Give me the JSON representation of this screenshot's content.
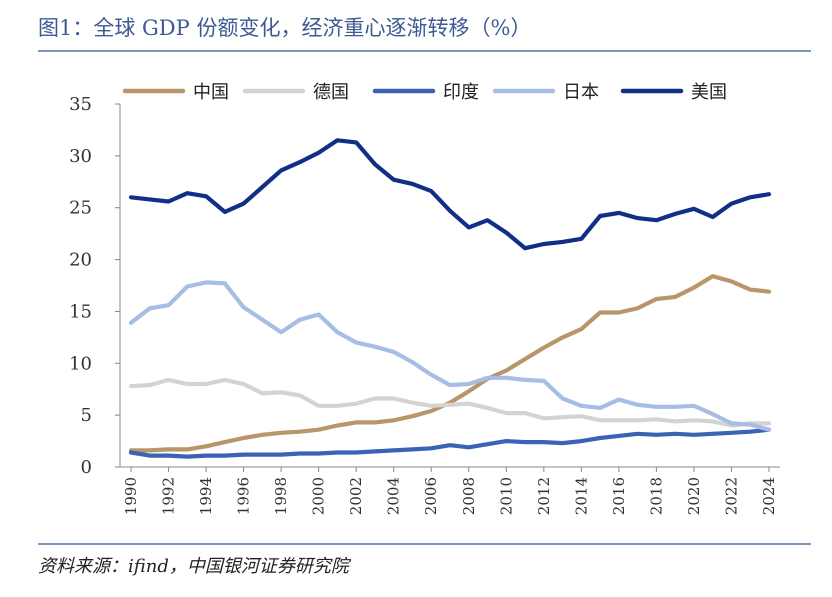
{
  "header": {
    "title": "图1：全球 GDP 份额变化，经济重心逐渐转移（%）"
  },
  "footer": {
    "source": "资料来源：ifind，中国银河证券研究院"
  },
  "chart_data": {
    "type": "line",
    "title": "图1：全球 GDP 份额变化，经济重心逐渐转移（%）",
    "xlabel": "",
    "ylabel": "",
    "ylim": [
      0,
      35
    ],
    "yticks": [
      0,
      5,
      10,
      15,
      20,
      25,
      30,
      35
    ],
    "xtick_labels": [
      "1990",
      "1992",
      "1994",
      "1996",
      "1998",
      "2000",
      "2002",
      "2004",
      "2006",
      "2008",
      "2010",
      "2012",
      "2014",
      "2016",
      "2018",
      "2020",
      "2022",
      "2024"
    ],
    "legend_position": "top",
    "x": [
      1990,
      1991,
      1992,
      1993,
      1994,
      1995,
      1996,
      1997,
      1998,
      1999,
      2000,
      2001,
      2002,
      2003,
      2004,
      2005,
      2006,
      2007,
      2008,
      2009,
      2010,
      2011,
      2012,
      2013,
      2014,
      2015,
      2016,
      2017,
      2018,
      2019,
      2020,
      2021,
      2022,
      2023,
      2024
    ],
    "series": [
      {
        "name": "中国",
        "color": "#b8966a",
        "values": [
          1.6,
          1.6,
          1.7,
          1.7,
          2.0,
          2.4,
          2.8,
          3.1,
          3.3,
          3.4,
          3.6,
          4.0,
          4.3,
          4.3,
          4.5,
          4.9,
          5.4,
          6.2,
          7.3,
          8.5,
          9.3,
          10.4,
          11.5,
          12.5,
          13.3,
          14.9,
          14.9,
          15.3,
          16.2,
          16.4,
          17.3,
          18.4,
          17.9,
          17.1,
          16.9
        ]
      },
      {
        "name": "德国",
        "color": "#d3d3d3",
        "values": [
          7.8,
          7.9,
          8.4,
          8.0,
          8.0,
          8.4,
          8.0,
          7.1,
          7.2,
          6.9,
          5.9,
          5.9,
          6.1,
          6.6,
          6.6,
          6.2,
          5.9,
          6.0,
          6.1,
          5.7,
          5.2,
          5.2,
          4.7,
          4.8,
          4.9,
          4.5,
          4.5,
          4.5,
          4.6,
          4.4,
          4.5,
          4.4,
          4.0,
          4.2,
          4.2
        ]
      },
      {
        "name": "印度",
        "color": "#3b63b3",
        "values": [
          1.4,
          1.1,
          1.1,
          1.0,
          1.1,
          1.1,
          1.2,
          1.2,
          1.2,
          1.3,
          1.3,
          1.4,
          1.4,
          1.5,
          1.6,
          1.7,
          1.8,
          2.1,
          1.9,
          2.2,
          2.5,
          2.4,
          2.4,
          2.3,
          2.5,
          2.8,
          3.0,
          3.2,
          3.1,
          3.2,
          3.1,
          3.2,
          3.3,
          3.4,
          3.6
        ]
      },
      {
        "name": "日本",
        "color": "#a7bde6",
        "values": [
          13.9,
          15.3,
          15.6,
          17.4,
          17.8,
          17.7,
          15.4,
          14.2,
          13.0,
          14.2,
          14.7,
          13.0,
          12.0,
          11.6,
          11.1,
          10.1,
          8.9,
          7.9,
          8.0,
          8.6,
          8.6,
          8.4,
          8.3,
          6.6,
          5.9,
          5.7,
          6.5,
          6.0,
          5.8,
          5.8,
          5.9,
          5.1,
          4.2,
          4.1,
          3.6
        ]
      },
      {
        "name": "美国",
        "color": "#122f87",
        "values": [
          26.0,
          25.8,
          25.6,
          26.4,
          26.1,
          24.6,
          25.4,
          27.0,
          28.6,
          29.4,
          30.3,
          31.5,
          31.3,
          29.2,
          27.7,
          27.3,
          26.6,
          24.7,
          23.1,
          23.8,
          22.6,
          21.1,
          21.5,
          21.7,
          22.0,
          24.2,
          24.5,
          24.0,
          23.8,
          24.4,
          24.9,
          24.1,
          25.4,
          26.0,
          26.3
        ]
      }
    ]
  }
}
